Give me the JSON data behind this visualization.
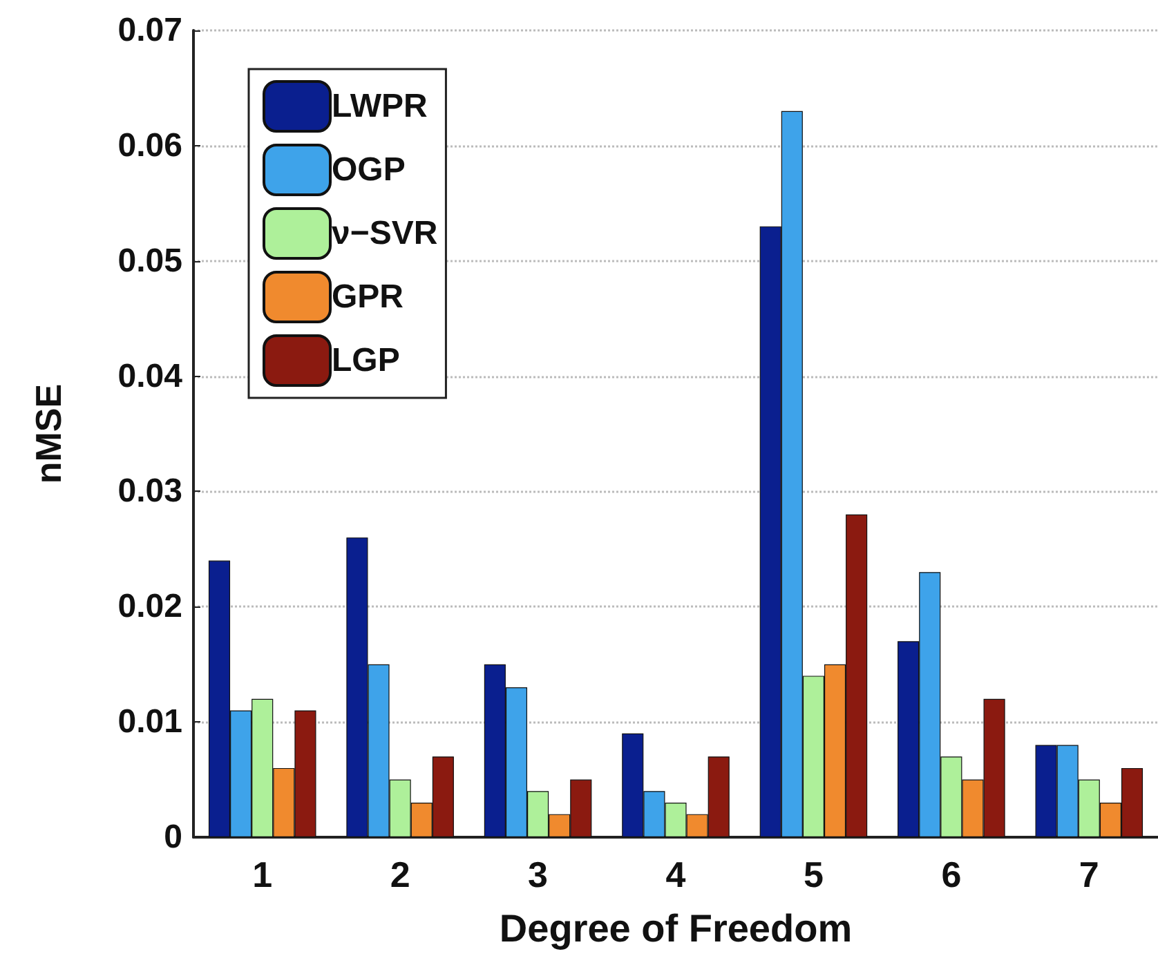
{
  "chart_data": {
    "type": "bar",
    "xlabel": "Degree of Freedom",
    "ylabel": "nMSE",
    "categories": [
      "1",
      "2",
      "3",
      "4",
      "5",
      "6",
      "7"
    ],
    "series": [
      {
        "name": "LWPR",
        "color": "#0a1f8f",
        "values": [
          0.024,
          0.026,
          0.015,
          0.009,
          0.053,
          0.017,
          0.008
        ]
      },
      {
        "name": "OGP",
        "color": "#3ea3ea",
        "values": [
          0.011,
          0.015,
          0.013,
          0.004,
          0.063,
          0.023,
          0.008
        ]
      },
      {
        "name": "ν−SVR",
        "color": "#aef09a",
        "values": [
          0.012,
          0.005,
          0.004,
          0.003,
          0.014,
          0.007,
          0.005
        ]
      },
      {
        "name": "GPR",
        "color": "#f08a2e",
        "values": [
          0.006,
          0.003,
          0.002,
          0.002,
          0.015,
          0.005,
          0.003
        ]
      },
      {
        "name": "LGP",
        "color": "#8b1a10",
        "values": [
          0.011,
          0.007,
          0.005,
          0.007,
          0.028,
          0.012,
          0.006
        ]
      }
    ],
    "ylim": [
      0,
      0.07
    ],
    "yticks": [
      0,
      0.01,
      0.02,
      0.03,
      0.04,
      0.05,
      0.06,
      0.07
    ],
    "grid": "y",
    "legend": "top left"
  }
}
